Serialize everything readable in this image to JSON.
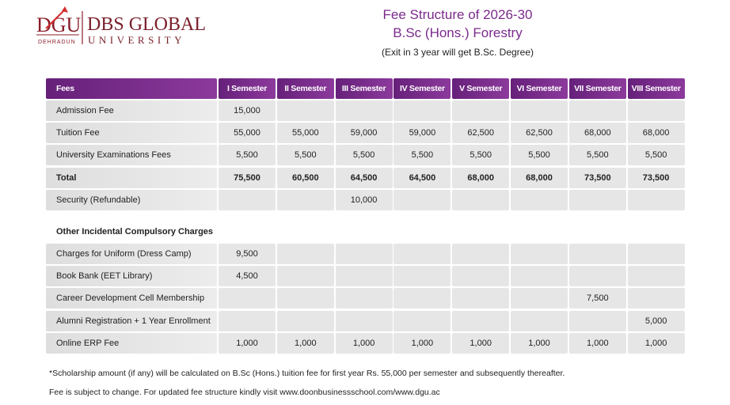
{
  "logo": {
    "mark": "DGU",
    "city": "DEHRADUN",
    "name": "DBS GLOBAL",
    "subtitle": "UNIVERSITY"
  },
  "header": {
    "title": "Fee Structure of 2026-30",
    "subtitle": "B.Sc (Hons.) Forestry",
    "note": "(Exit in 3 year will get B.Sc. Degree)"
  },
  "table": {
    "header": [
      "Fees",
      "I Semester",
      "II Semester",
      "III Semester",
      "IV Semester",
      "V Semester",
      "VI Semester",
      "VII Semester",
      "VIII Semester"
    ],
    "rows": [
      {
        "label": "Admission Fee",
        "cells": [
          "15,000",
          null,
          null,
          null,
          null,
          null,
          null,
          null
        ]
      },
      {
        "label": "Tuition Fee",
        "cells": [
          "55,000",
          "55,000",
          "59,000",
          "59,000",
          "62,500",
          "62,500",
          "68,000",
          "68,000"
        ]
      },
      {
        "label": "University Examinations Fees",
        "cells": [
          "5,500",
          "5,500",
          "5,500",
          "5,500",
          "5,500",
          "5,500",
          "5,500",
          "5,500"
        ]
      },
      {
        "label": "Total",
        "bold": true,
        "cells": [
          "75,500",
          "60,500",
          "64,500",
          "64,500",
          "68,000",
          "68,000",
          "73,500",
          "73,500"
        ]
      },
      {
        "label": "Security (Refundable)",
        "cells": [
          null,
          null,
          "10,000",
          null,
          null,
          null,
          null,
          null
        ]
      }
    ],
    "section_title": "Other Incidental Compulsory Charges",
    "extra_rows": [
      {
        "label": "Charges for Uniform (Dress Camp)",
        "cells": [
          "9,500",
          null,
          null,
          null,
          null,
          null,
          null,
          null
        ]
      },
      {
        "label": "Book Bank (EET Library)",
        "cells": [
          "4,500",
          null,
          null,
          null,
          null,
          null,
          null,
          null
        ]
      },
      {
        "label": "Career Development Cell Membership",
        "cells": [
          null,
          null,
          null,
          null,
          null,
          null,
          "7,500",
          null
        ]
      },
      {
        "label": "Alumni Registration + 1 Year Enrollment",
        "cells": [
          null,
          null,
          null,
          null,
          null,
          null,
          null,
          "5,000"
        ]
      },
      {
        "label": "Online ERP Fee",
        "cells": [
          "1,000",
          "1,000",
          "1,000",
          "1,000",
          "1,000",
          "1,000",
          "1,000",
          "1,000"
        ]
      }
    ]
  },
  "footnotes": [
    "*Scholarship amount (if any) will be calculated on B.Sc (Hons.) tuition fee for first year Rs. 55,000 per semester and subsequently thereafter.",
    "Fee is subject to change. For updated fee structure kindly visit www.doonbusinessschool.com/www.dgu.ac"
  ]
}
